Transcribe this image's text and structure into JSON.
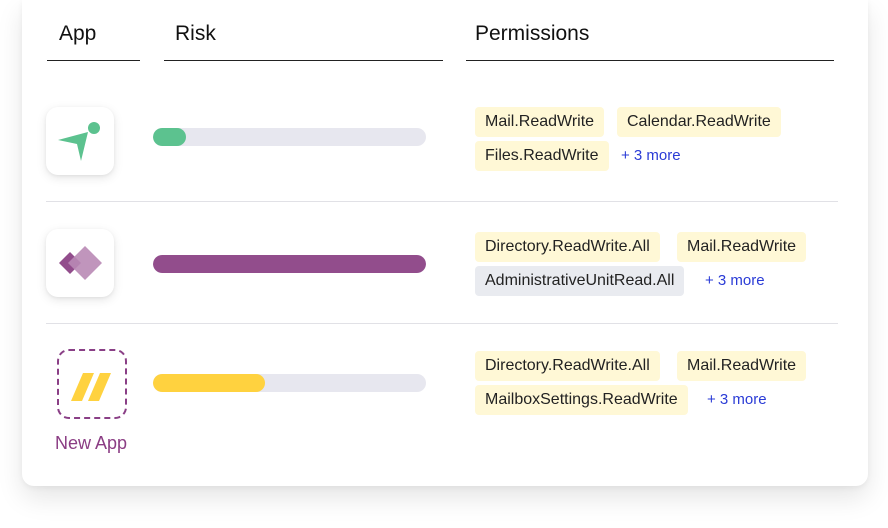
{
  "headers": {
    "app": "App",
    "risk": "Risk",
    "permissions": "Permissions"
  },
  "colors": {
    "green": "#5cc28f",
    "purple": "#924d8c",
    "yellow": "#ffd23f",
    "track": "#e7e7ef",
    "chip": "#fff8d6",
    "chip_gray": "#e9ebf0",
    "link": "#2a3bd6"
  },
  "rows": [
    {
      "icon": "send-arrow-icon",
      "risk": 0.12,
      "permissions": [
        "Mail.ReadWrite",
        "Calendar.ReadWrite",
        "Files.ReadWrite"
      ],
      "more": "+ 3 more"
    },
    {
      "icon": "purple-diamonds-icon",
      "risk": 1.0,
      "permissions": [
        "Directory.ReadWrite.All",
        "Mail.ReadWrite",
        "AdministrativeUnitRead.All"
      ],
      "more": "+ 3 more"
    },
    {
      "icon": "yellow-stripes-icon",
      "label": "New App",
      "risk": 0.41,
      "permissions": [
        "Directory.ReadWrite.All",
        "Mail.ReadWrite",
        "MailboxSettings.ReadWrite"
      ],
      "more": "+ 3 more"
    }
  ]
}
